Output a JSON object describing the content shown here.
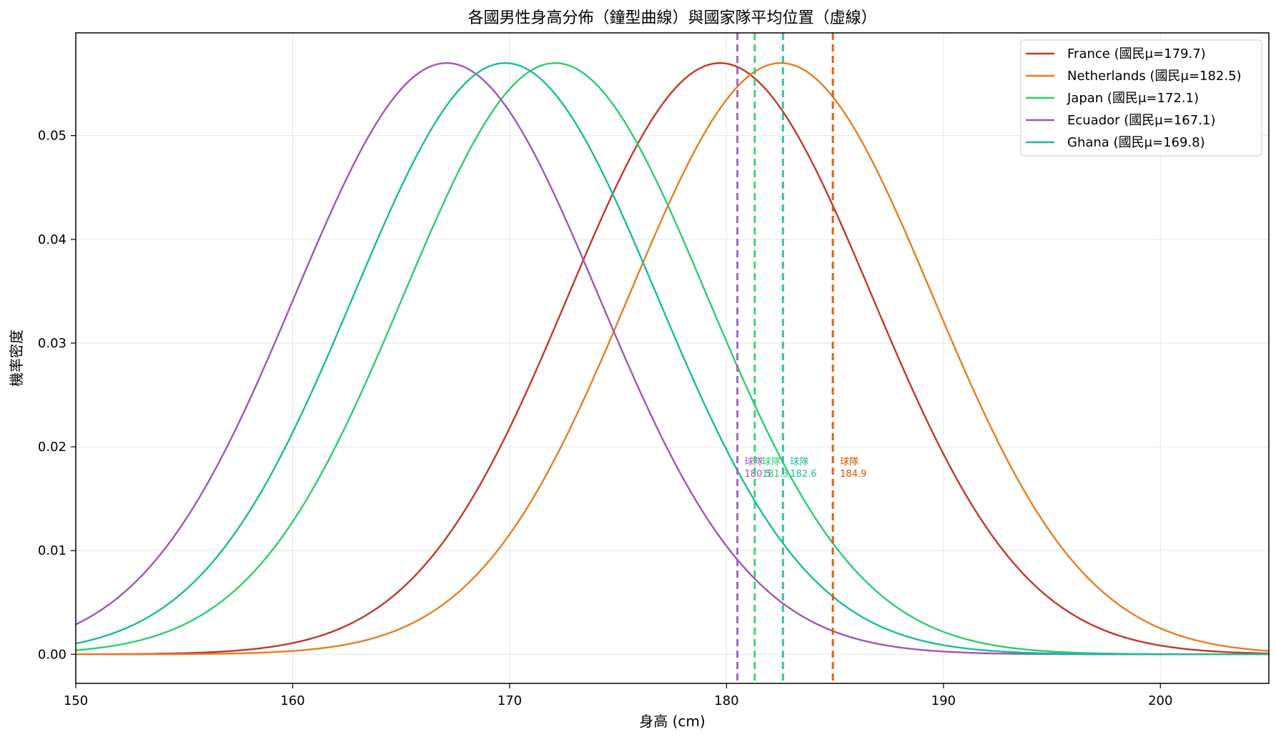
{
  "chart_data": {
    "type": "line",
    "title": "各國男性身高分佈（鐘型曲線）與國家隊平均位置（虛線）",
    "xlabel": "身高 (cm)",
    "ylabel": "機率密度",
    "xlim": [
      150,
      205
    ],
    "ylim": [
      -0.0028,
      0.0599
    ],
    "xticks": [
      150,
      160,
      170,
      180,
      190,
      200
    ],
    "yticks": [
      0.0,
      0.01,
      0.02,
      0.03,
      0.04,
      0.05
    ],
    "ytick_labels": [
      "0.00",
      "0.01",
      "0.02",
      "0.03",
      "0.04",
      "0.05"
    ],
    "grid": true,
    "legend_position": "top-right",
    "series": [
      {
        "name": "France (國民μ=179.7)",
        "mean": 179.7,
        "sd": 7.0,
        "color": "#c0392b"
      },
      {
        "name": "Netherlands (國民μ=182.5)",
        "mean": 182.5,
        "sd": 7.0,
        "color": "#e67e22"
      },
      {
        "name": "Japan (國民μ=172.1)",
        "mean": 172.1,
        "sd": 7.0,
        "color": "#2ecc71"
      },
      {
        "name": "Ecuador (國民μ=167.1)",
        "mean": 167.1,
        "sd": 7.0,
        "color": "#9b59b6"
      },
      {
        "name": "Ghana (國民μ=169.8)",
        "mean": 169.8,
        "sd": 7.0,
        "color": "#1abc9c"
      }
    ],
    "team_lines": [
      {
        "x": 180.5,
        "label": "球隊",
        "value": "180.5",
        "color": "#9b59b6"
      },
      {
        "x": 181.3,
        "label": "球隊",
        "value": "181.3",
        "color": "#2ecc71"
      },
      {
        "x": 182.6,
        "label": "球隊",
        "value": "182.6",
        "color": "#1abc9c"
      },
      {
        "x": 184.9,
        "label": "球隊",
        "value": "184.9",
        "color": "#d35400"
      }
    ]
  }
}
